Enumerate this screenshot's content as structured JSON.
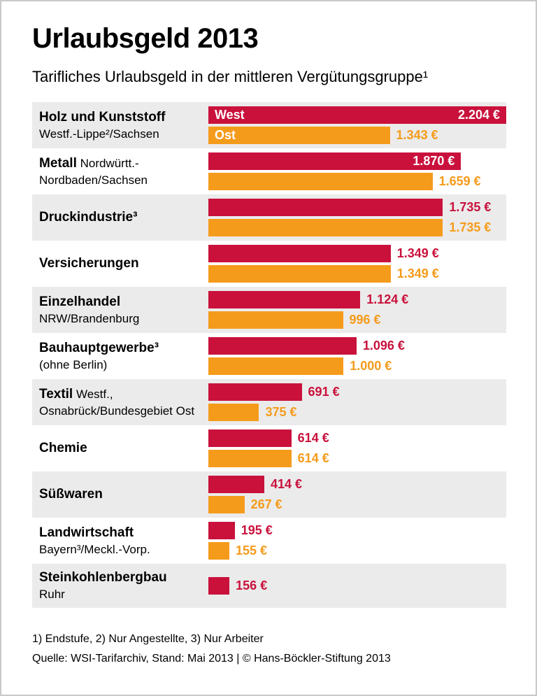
{
  "title": "Urlaubsgeld 2013",
  "subtitle": "Tarifliches Urlaubsgeld in der mittleren Vergütungsgruppe¹",
  "footnotes": "1) Endstufe, 2) Nur Angestellte, 3) Nur Arbeiter",
  "source": "Quelle: WSI-Tarifarchiv, Stand: Mai 2013 | © Hans-Böckler-Stiftung 2013",
  "colors": {
    "west": "#c9113c",
    "ost": "#f59b1b",
    "stripe": "#ebebeb"
  },
  "chart_data": {
    "type": "bar",
    "orientation": "horizontal",
    "unit": "€",
    "max_value": 2204,
    "legend_position": "inside-first-bars",
    "series": [
      {
        "name": "West",
        "color": "#c9113c"
      },
      {
        "name": "Ost",
        "color": "#f59b1b"
      }
    ],
    "rows": [
      {
        "name": "Holz und Kunststoff",
        "region": "Westf.-Lippe²/Sachsen",
        "region_block": true,
        "west": {
          "value": 2204,
          "label": "2.204 €",
          "placement": "inside",
          "tag": "West"
        },
        "ost": {
          "value": 1343,
          "label": "1.343 €",
          "placement": "outside",
          "tag": "Ost"
        }
      },
      {
        "name": "Metall",
        "region": "Nordwürtt.-Nordbaden/Sachsen",
        "region_block": false,
        "west": {
          "value": 1870,
          "label": "1.870 €",
          "placement": "inside"
        },
        "ost": {
          "value": 1659,
          "label": "1.659 €",
          "placement": "outside"
        }
      },
      {
        "name": "Druckindustrie³",
        "region": "",
        "region_block": false,
        "west": {
          "value": 1735,
          "label": "1.735 €",
          "placement": "outside"
        },
        "ost": {
          "value": 1735,
          "label": "1.735 €",
          "placement": "outside"
        }
      },
      {
        "name": "Versicherungen",
        "region": "",
        "region_block": false,
        "west": {
          "value": 1349,
          "label": "1.349 €",
          "placement": "outside"
        },
        "ost": {
          "value": 1349,
          "label": "1.349 €",
          "placement": "outside"
        }
      },
      {
        "name": "Einzelhandel",
        "region": "NRW/Brandenburg",
        "region_block": true,
        "west": {
          "value": 1124,
          "label": "1.124 €",
          "placement": "outside"
        },
        "ost": {
          "value": 996,
          "label": "996 €",
          "placement": "outside"
        }
      },
      {
        "name": "Bauhauptgewerbe³",
        "region": "(ohne Berlin)",
        "region_block": true,
        "west": {
          "value": 1096,
          "label": "1.096 €",
          "placement": "outside"
        },
        "ost": {
          "value": 1000,
          "label": "1.000 €",
          "placement": "outside"
        }
      },
      {
        "name": "Textil",
        "region": "Westf., Osnabrück/Bundesgebiet Ost",
        "region_block": false,
        "west": {
          "value": 691,
          "label": "691 €",
          "placement": "outside"
        },
        "ost": {
          "value": 375,
          "label": "375 €",
          "placement": "outside"
        }
      },
      {
        "name": "Chemie",
        "region": "",
        "region_block": false,
        "west": {
          "value": 614,
          "label": "614 €",
          "placement": "outside"
        },
        "ost": {
          "value": 614,
          "label": "614 €",
          "placement": "outside"
        }
      },
      {
        "name": "Süßwaren",
        "region": "",
        "region_block": false,
        "west": {
          "value": 414,
          "label": "414 €",
          "placement": "outside"
        },
        "ost": {
          "value": 267,
          "label": "267 €",
          "placement": "outside"
        }
      },
      {
        "name": "Landwirtschaft",
        "region": "Bayern³/Meckl.-Vorp.",
        "region_block": true,
        "west": {
          "value": 195,
          "label": "195 €",
          "placement": "outside"
        },
        "ost": {
          "value": 155,
          "label": "155 €",
          "placement": "outside"
        }
      },
      {
        "name": "Steinkohlenbergbau",
        "region": "Ruhr",
        "region_block": true,
        "west": {
          "value": 156,
          "label": "156 €",
          "placement": "outside"
        },
        "ost": null
      }
    ]
  }
}
